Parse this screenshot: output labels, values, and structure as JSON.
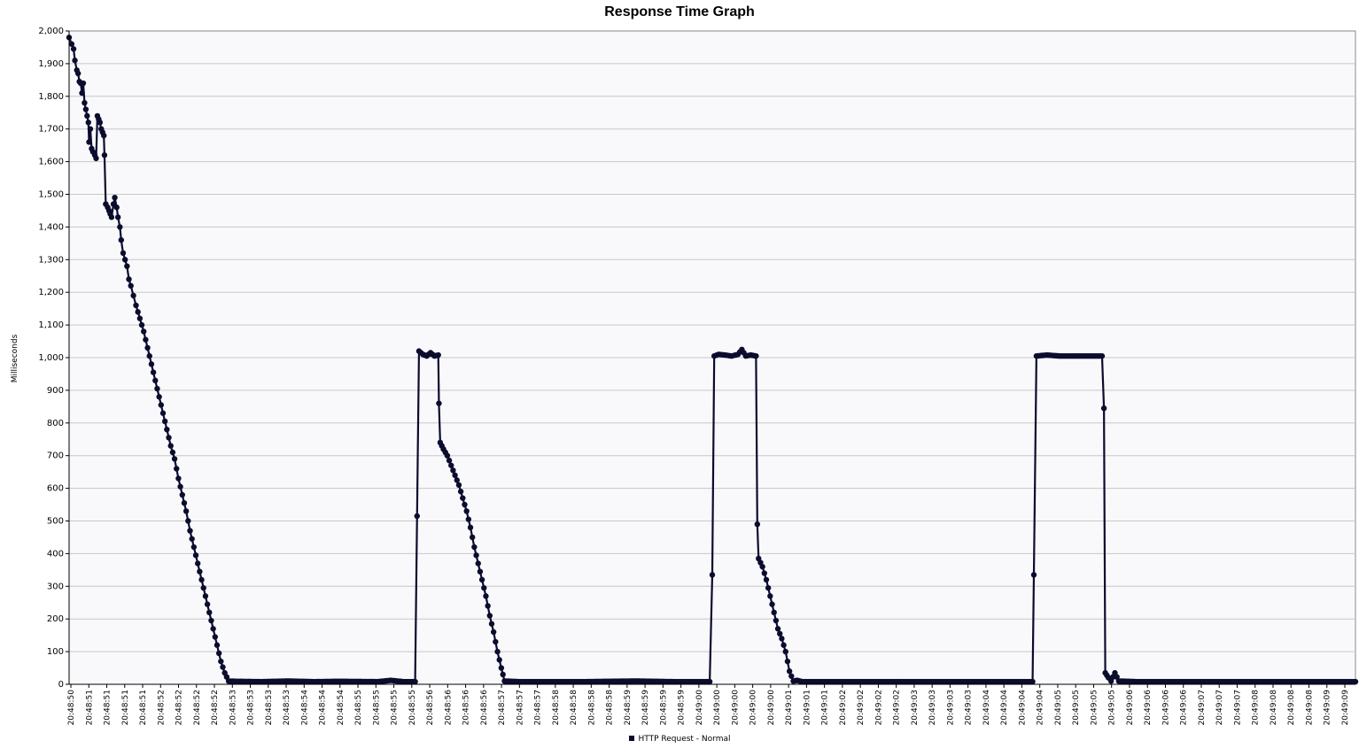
{
  "chart_data": {
    "type": "line",
    "title": "Response Time Graph",
    "xlabel": "",
    "ylabel": "Milliseconds",
    "ylim": [
      0,
      2000
    ],
    "yticks": [
      0,
      100,
      200,
      300,
      400,
      500,
      600,
      700,
      800,
      900,
      1000,
      1100,
      1200,
      1300,
      1400,
      1500,
      1600,
      1700,
      1800,
      1900,
      2000
    ],
    "ytick_labels": [
      "0",
      "100",
      "200",
      "300",
      "400",
      "500",
      "600",
      "700",
      "800",
      "900",
      "1,000",
      "1,100",
      "1,200",
      "1,300",
      "1,400",
      "1,500",
      "1,600",
      "1,700",
      "1,800",
      "1,900",
      "2,000"
    ],
    "xtick_labels": [
      "20:48:50",
      "20:48:51",
      "20:48:51",
      "20:48:51",
      "20:48:51",
      "20:48:52",
      "20:48:52",
      "20:48:52",
      "20:48:52",
      "20:48:53",
      "20:48:53",
      "20:48:53",
      "20:48:53",
      "20:48:54",
      "20:48:54",
      "20:48:54",
      "20:48:55",
      "20:48:55",
      "20:48:55",
      "20:48:55",
      "20:48:56",
      "20:48:56",
      "20:48:56",
      "20:48:56",
      "20:48:57",
      "20:48:57",
      "20:48:57",
      "20:48:58",
      "20:48:58",
      "20:48:58",
      "20:48:58",
      "20:48:59",
      "20:48:59",
      "20:48:59",
      "20:48:59",
      "20:49:00",
      "20:49:00",
      "20:49:00",
      "20:49:00",
      "20:49:00",
      "20:49:01",
      "20:49:01",
      "20:49:01",
      "20:49:02",
      "20:49:02",
      "20:49:02",
      "20:49:02",
      "20:49:03",
      "20:49:03",
      "20:49:03",
      "20:49:03",
      "20:49:04",
      "20:49:04",
      "20:49:04",
      "20:49:04",
      "20:49:05",
      "20:49:05",
      "20:49:05",
      "20:49:05",
      "20:49:06",
      "20:49:06",
      "20:49:06",
      "20:49:06",
      "20:49:07",
      "20:49:07",
      "20:49:07",
      "20:49:08",
      "20:49:08",
      "20:49:08",
      "20:49:08",
      "20:49:09",
      "20:49:09"
    ],
    "x_domain": [
      0,
      100
    ],
    "grid": true,
    "legend_position": "bottom-center",
    "series": [
      {
        "name": "HTTP Request - Normal",
        "color": "#0b0c2e",
        "points": [
          [
            0.0,
            1980
          ],
          [
            0.2,
            1960
          ],
          [
            0.35,
            1945
          ],
          [
            0.45,
            1910
          ],
          [
            0.6,
            1880
          ],
          [
            0.7,
            1870
          ],
          [
            0.8,
            1845
          ],
          [
            0.9,
            1840
          ],
          [
            1.0,
            1810
          ],
          [
            1.1,
            1840
          ],
          [
            1.2,
            1780
          ],
          [
            1.3,
            1760
          ],
          [
            1.4,
            1740
          ],
          [
            1.5,
            1720
          ],
          [
            1.55,
            1660
          ],
          [
            1.65,
            1700
          ],
          [
            1.75,
            1640
          ],
          [
            1.85,
            1630
          ],
          [
            2.0,
            1620
          ],
          [
            2.1,
            1610
          ],
          [
            2.2,
            1740
          ],
          [
            2.3,
            1730
          ],
          [
            2.4,
            1720
          ],
          [
            2.5,
            1700
          ],
          [
            2.6,
            1690
          ],
          [
            2.7,
            1680
          ],
          [
            2.75,
            1620
          ],
          [
            2.85,
            1470
          ],
          [
            3.0,
            1460
          ],
          [
            3.1,
            1450
          ],
          [
            3.2,
            1440
          ],
          [
            3.3,
            1430
          ],
          [
            3.45,
            1470
          ],
          [
            3.55,
            1490
          ],
          [
            3.7,
            1460
          ],
          [
            3.8,
            1430
          ],
          [
            3.95,
            1400
          ],
          [
            4.05,
            1360
          ],
          [
            4.2,
            1320
          ],
          [
            4.35,
            1300
          ],
          [
            4.5,
            1280
          ],
          [
            4.65,
            1240
          ],
          [
            4.8,
            1220
          ],
          [
            5.0,
            1190
          ],
          [
            5.2,
            1160
          ],
          [
            5.5,
            1120
          ],
          [
            5.8,
            1080
          ],
          [
            6.1,
            1030
          ],
          [
            6.4,
            980
          ],
          [
            6.7,
            930
          ],
          [
            7.0,
            880
          ],
          [
            7.3,
            830
          ],
          [
            7.6,
            780
          ],
          [
            7.9,
            730
          ],
          [
            8.2,
            690
          ],
          [
            8.5,
            630
          ],
          [
            8.8,
            580
          ],
          [
            9.1,
            530
          ],
          [
            9.4,
            470
          ],
          [
            9.7,
            420
          ],
          [
            10.0,
            370
          ],
          [
            10.3,
            320
          ],
          [
            10.6,
            270
          ],
          [
            10.9,
            220
          ],
          [
            11.2,
            170
          ],
          [
            11.5,
            120
          ],
          [
            11.8,
            70
          ],
          [
            12.1,
            35
          ],
          [
            12.4,
            10
          ],
          [
            13.0,
            9
          ],
          [
            15.0,
            8
          ],
          [
            17.0,
            10
          ],
          [
            19.0,
            8
          ],
          [
            21.0,
            9
          ],
          [
            24.0,
            8
          ],
          [
            25.0,
            12
          ],
          [
            26.0,
            8
          ],
          [
            26.9,
            8
          ],
          [
            27.05,
            515
          ],
          [
            27.2,
            1020
          ],
          [
            27.5,
            1010
          ],
          [
            27.8,
            1005
          ],
          [
            28.1,
            1015
          ],
          [
            28.4,
            1005
          ],
          [
            28.7,
            1008
          ],
          [
            28.75,
            860
          ],
          [
            28.85,
            740
          ],
          [
            29.1,
            720
          ],
          [
            29.4,
            700
          ],
          [
            29.7,
            670
          ],
          [
            30.0,
            640
          ],
          [
            30.3,
            610
          ],
          [
            30.6,
            570
          ],
          [
            30.9,
            530
          ],
          [
            31.2,
            480
          ],
          [
            31.5,
            420
          ],
          [
            31.8,
            370
          ],
          [
            32.1,
            320
          ],
          [
            32.4,
            270
          ],
          [
            32.7,
            210
          ],
          [
            33.0,
            160
          ],
          [
            33.3,
            100
          ],
          [
            33.6,
            50
          ],
          [
            33.85,
            10
          ],
          [
            35.0,
            8
          ],
          [
            38.0,
            8
          ],
          [
            40.0,
            8
          ],
          [
            44.0,
            10
          ],
          [
            47.0,
            8
          ],
          [
            49.8,
            8
          ],
          [
            50.0,
            335
          ],
          [
            50.15,
            1005
          ],
          [
            50.5,
            1010
          ],
          [
            51.0,
            1008
          ],
          [
            51.5,
            1005
          ],
          [
            52.0,
            1010
          ],
          [
            52.3,
            1025
          ],
          [
            52.6,
            1005
          ],
          [
            53.0,
            1008
          ],
          [
            53.4,
            1005
          ],
          [
            53.5,
            490
          ],
          [
            53.6,
            385
          ],
          [
            53.9,
            360
          ],
          [
            54.2,
            320
          ],
          [
            54.5,
            270
          ],
          [
            54.8,
            220
          ],
          [
            55.1,
            170
          ],
          [
            55.4,
            140
          ],
          [
            55.7,
            100
          ],
          [
            56.0,
            40
          ],
          [
            56.3,
            10
          ],
          [
            56.6,
            12
          ],
          [
            57.0,
            8
          ],
          [
            60.0,
            8
          ],
          [
            65.0,
            8
          ],
          [
            70.0,
            8
          ],
          [
            74.9,
            8
          ],
          [
            75.0,
            335
          ],
          [
            75.2,
            1005
          ],
          [
            76.0,
            1008
          ],
          [
            77.0,
            1005
          ],
          [
            78.0,
            1005
          ],
          [
            79.0,
            1005
          ],
          [
            80.0,
            1005
          ],
          [
            80.3,
            1005
          ],
          [
            80.45,
            845
          ],
          [
            80.55,
            35
          ],
          [
            80.8,
            20
          ],
          [
            81.0,
            10
          ],
          [
            81.3,
            35
          ],
          [
            81.6,
            10
          ],
          [
            83.0,
            8
          ],
          [
            85.0,
            8
          ],
          [
            88.0,
            8
          ],
          [
            92.0,
            8
          ],
          [
            96.0,
            8
          ],
          [
            100.0,
            8
          ]
        ]
      }
    ]
  }
}
